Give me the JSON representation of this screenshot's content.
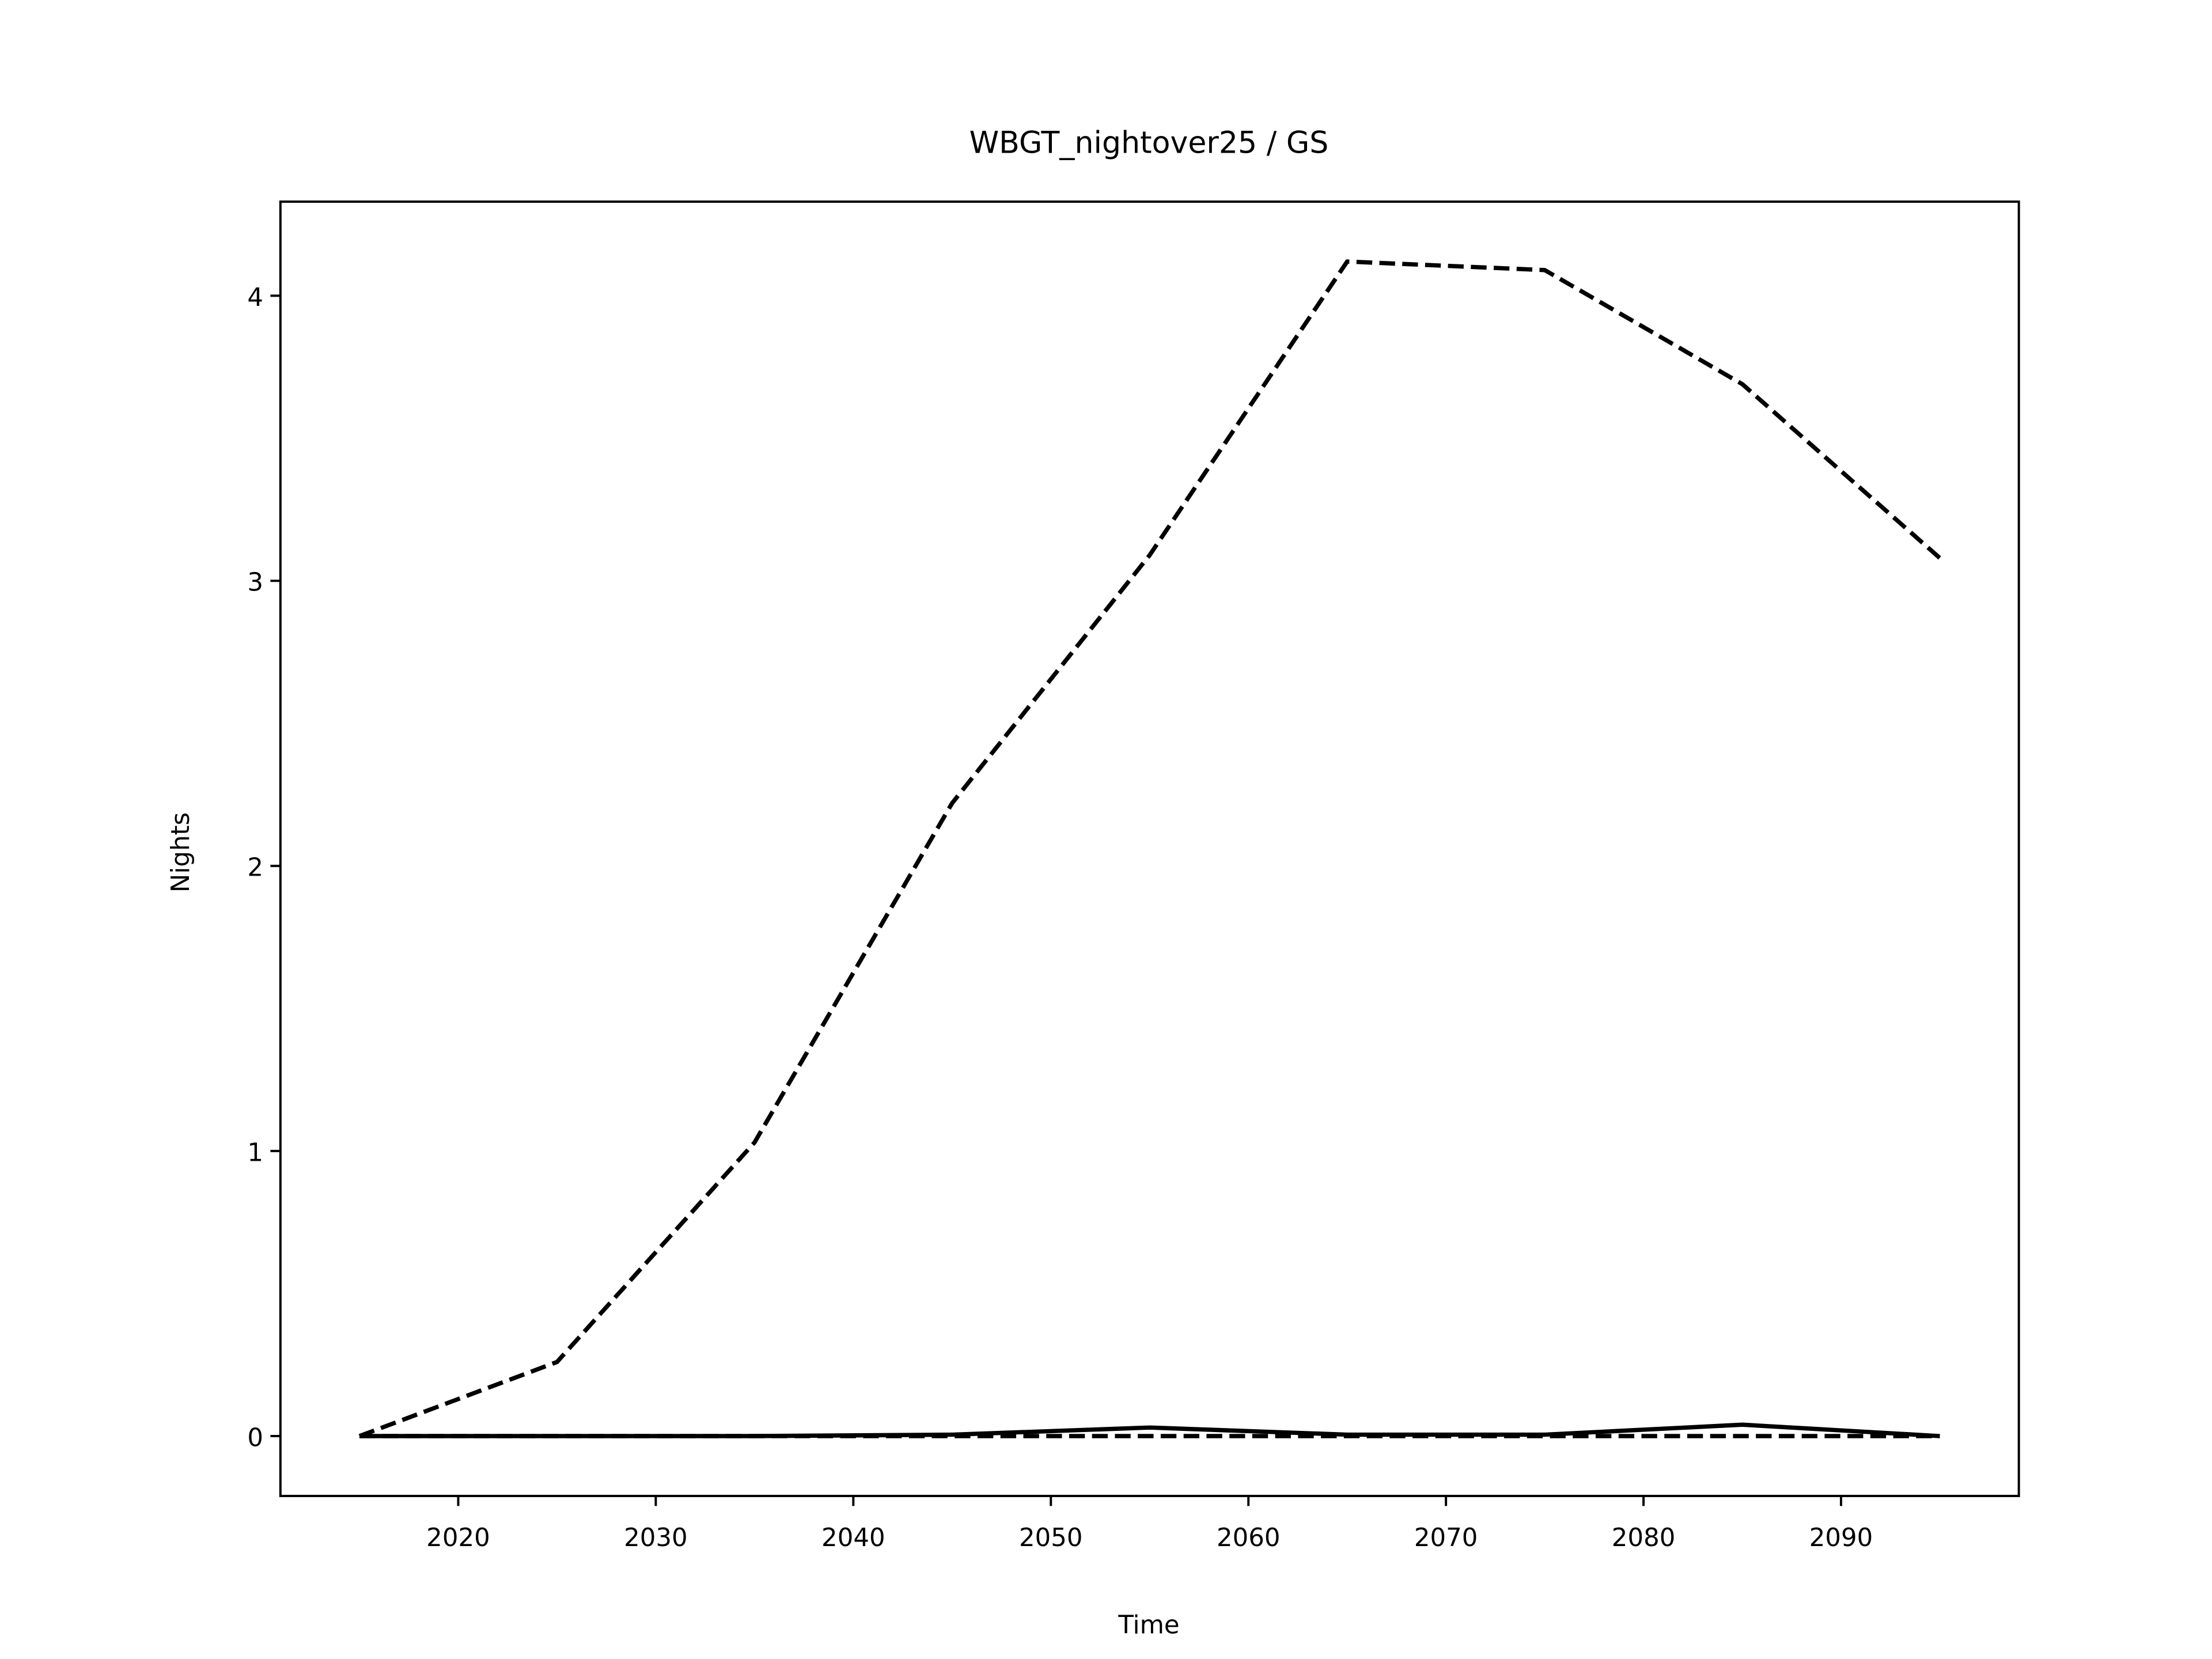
{
  "chart_data": {
    "type": "line",
    "title": "WBGT_nightover25 / GS",
    "xlabel": "Time",
    "ylabel": "Nights",
    "x": [
      2015,
      2025,
      2035,
      2045,
      2055,
      2065,
      2075,
      2085,
      2095
    ],
    "series": [
      {
        "color": "#000000",
        "linestyle": "dashed",
        "values": [
          0,
          0.26,
          1.03,
          2.22,
          3.09,
          4.12,
          4.09,
          3.69,
          3.08
        ]
      },
      {
        "color": "#000000",
        "linestyle": "solid",
        "values": [
          0,
          0,
          0,
          0.005,
          0.03,
          0.005,
          0.005,
          0.04,
          0
        ]
      },
      {
        "color": "#000000",
        "linestyle": "dashed",
        "values": [
          0,
          0,
          0,
          0,
          0,
          0,
          0,
          0,
          0
        ]
      }
    ],
    "xlim": [
      2011,
      2099
    ],
    "xticks": [
      2020,
      2030,
      2040,
      2050,
      2060,
      2070,
      2080,
      2090
    ],
    "ylim": [
      -0.21,
      4.33
    ],
    "yticks": [
      0,
      1,
      2,
      3,
      4
    ],
    "grid": false
  }
}
